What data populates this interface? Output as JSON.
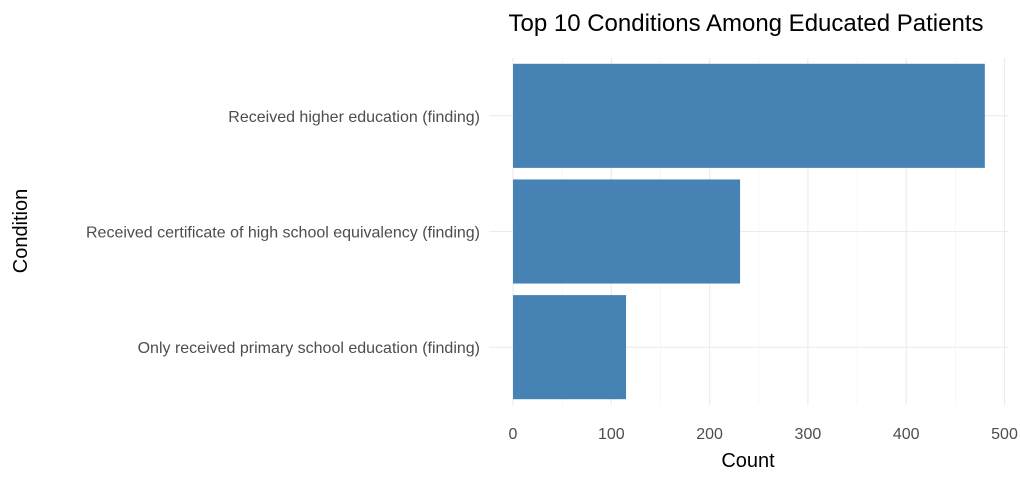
{
  "chart_data": {
    "type": "bar",
    "orientation": "horizontal",
    "title": "Top 10 Conditions Among Educated Patients",
    "xlabel": "Count",
    "ylabel": "Condition",
    "categories": [
      "Received higher education (finding)",
      "Received certificate of high school equivalency (finding)",
      "Only received primary school education (finding)"
    ],
    "values": [
      480,
      231,
      115
    ],
    "xlim": [
      0,
      500
    ],
    "xticks": [
      0,
      100,
      200,
      300,
      400,
      500
    ],
    "bar_color": "#4682B4",
    "grid": true,
    "legend": "none"
  }
}
